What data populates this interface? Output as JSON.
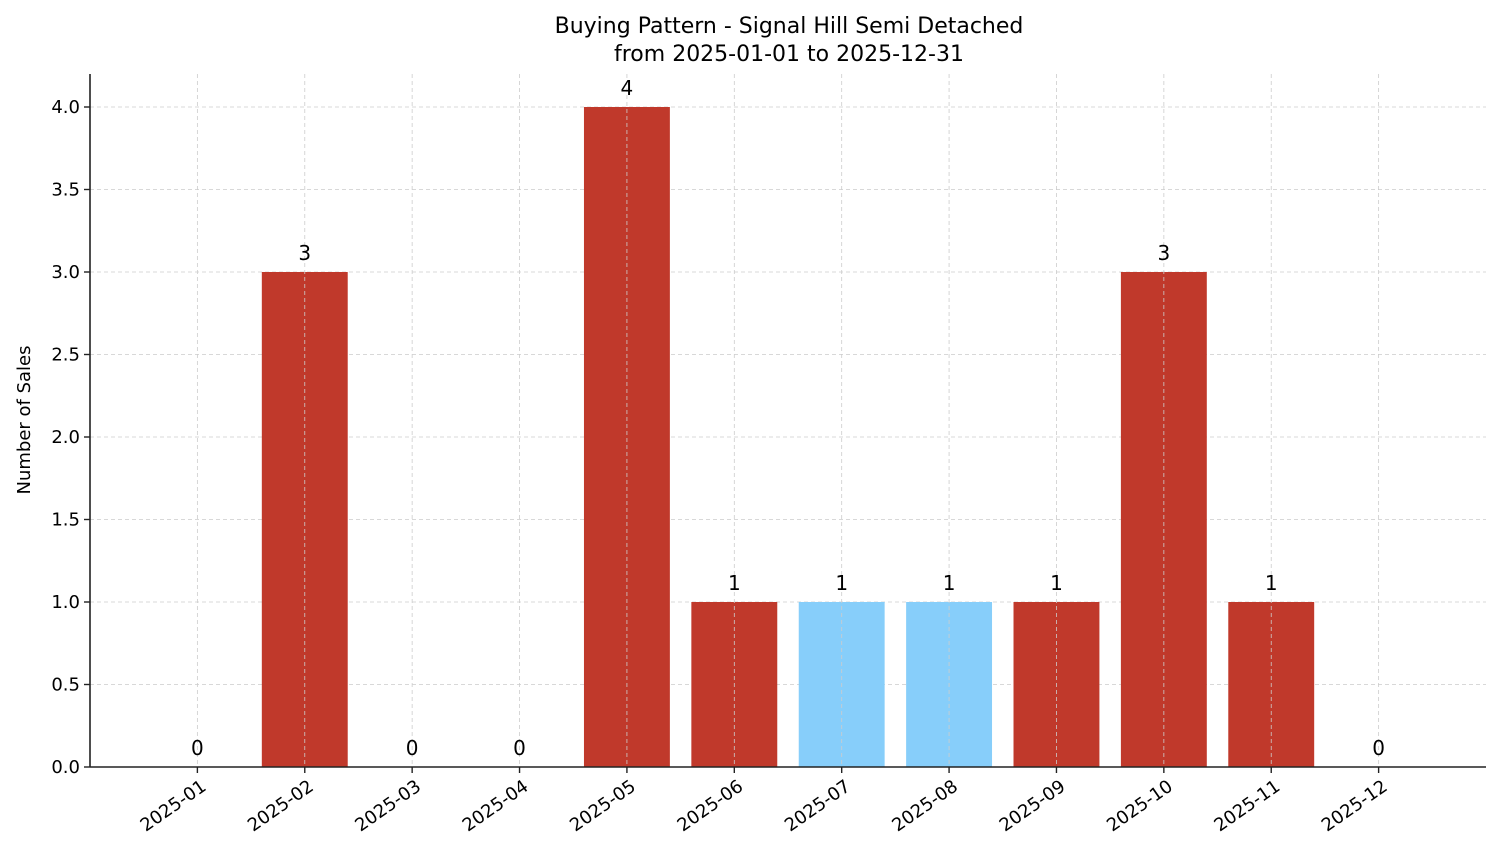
{
  "chart_data": {
    "type": "bar",
    "title": "Buying Pattern - Signal Hill Semi Detached",
    "subtitle": "from 2025-01-01 to 2025-12-31",
    "xlabel": "",
    "ylabel": "Number of Sales",
    "categories": [
      "2025-01",
      "2025-02",
      "2025-03",
      "2025-04",
      "2025-05",
      "2025-06",
      "2025-07",
      "2025-08",
      "2025-09",
      "2025-10",
      "2025-11",
      "2025-12"
    ],
    "values": [
      0,
      3,
      0,
      0,
      4,
      1,
      1,
      1,
      1,
      3,
      1,
      0
    ],
    "bar_colors": [
      "#c0392b",
      "#c0392b",
      "#c0392b",
      "#c0392b",
      "#c0392b",
      "#c0392b",
      "#87cefa",
      "#87cefa",
      "#c0392b",
      "#c0392b",
      "#c0392b",
      "#c0392b"
    ],
    "data_labels": [
      "0",
      "3",
      "0",
      "0",
      "4",
      "1",
      "1",
      "1",
      "1",
      "3",
      "1",
      "0"
    ],
    "ylim": [
      0,
      4.2
    ],
    "yticks": [
      "0.0",
      "0.5",
      "1.0",
      "1.5",
      "2.0",
      "2.5",
      "3.0",
      "3.5",
      "4.0"
    ],
    "grid": true,
    "grid_style": "dashed"
  }
}
